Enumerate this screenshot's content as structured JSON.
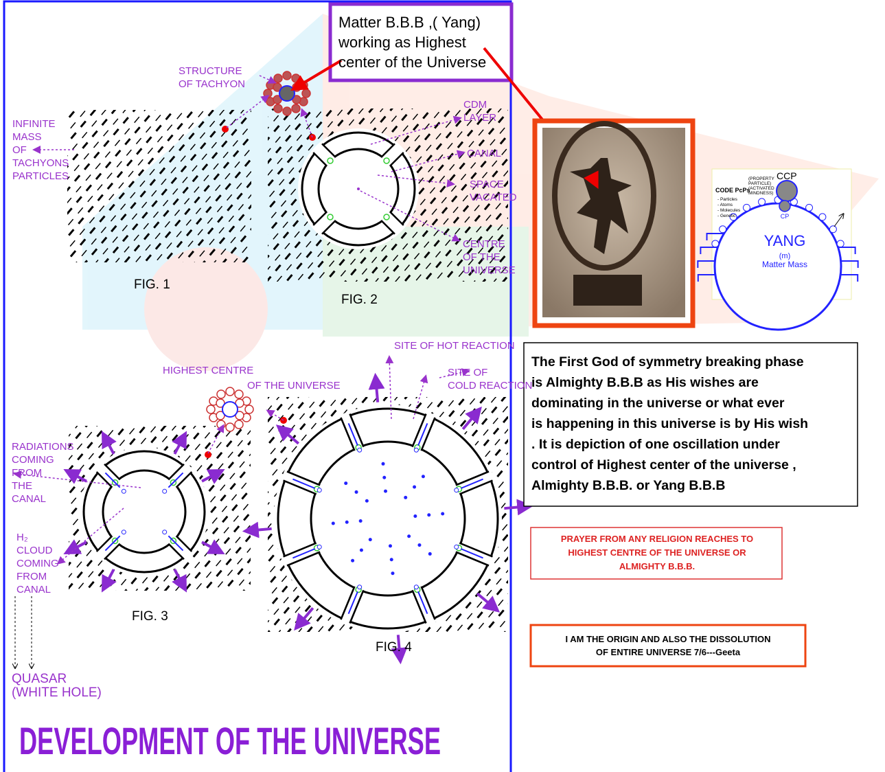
{
  "header_box": {
    "lines": [
      "Matter B.B.B ,( Yang)",
      "working as Highest",
      "center of the Universe"
    ]
  },
  "fig1": {
    "structure_label": [
      "STRUCTURE",
      "OF TACHYON"
    ],
    "mass_label": [
      "INFINITE",
      "MASS",
      "OF",
      "TACHYONS",
      "PARTICLES"
    ],
    "caption": "FIG. 1"
  },
  "fig2": {
    "cdm_label": [
      "CDM",
      "LAYER"
    ],
    "canal_label": "CANAL",
    "space_label": [
      "SPACE",
      "VACATED"
    ],
    "centre_label": [
      "CENTRE",
      "OF THE",
      "UNIVERSE"
    ],
    "caption": "FIG. 2"
  },
  "fig3": {
    "radiations_label": [
      "RADIATIONS",
      "COMING",
      "FROM",
      "THE",
      "CANAL"
    ],
    "cloud_label": [
      "H₂",
      "CLOUD",
      "COMING",
      "FROM",
      "CANAL"
    ],
    "quasar_label": [
      "QUASAR",
      "(WHITE HOLE)"
    ],
    "caption": "FIG. 3"
  },
  "fig4": {
    "highest_label_1": "HIGHEST CENTRE",
    "highest_label_2": "OF THE UNIVERSE",
    "hot_label": "SITE OF HOT REACTION",
    "cold_label": [
      "SITE OF",
      "COLD REACTION"
    ],
    "caption": "FIG. 4"
  },
  "title": "DEVELOPMENT OF THE UNIVERSE",
  "yang": {
    "ccp": "CCP",
    "property_label": [
      "(PROPERTY",
      "PARTICLE)",
      "(ACTIVATED",
      "MINDNESS)"
    ],
    "code_label": "CODE PcPs",
    "code_items": [
      "- Particles",
      "- Atoms",
      "- Molecules",
      "- Genetic"
    ],
    "cp": "CP",
    "yang": "YANG",
    "m": "(m)",
    "matter": "Matter Mass"
  },
  "statement": {
    "lines": [
      "The First God  of symmetry breaking phase",
      "is Almighty B.B.B  as His wishes are",
      "dominating in the universe  or what ever",
      "is happening in this universe is by His wish",
      " .  It is depiction of one oscillation  under",
      "control of Highest center of the universe  ,",
      "Almighty B.B.B. or Yang B.B.B"
    ]
  },
  "prayer": {
    "lines": [
      "PRAYER FROM ANY RELIGION REACHES TO",
      "HIGHEST CENTRE OF THE UNIVERSE OR",
      "ALMIGHTY B.B.B."
    ]
  },
  "geeta": {
    "lines": [
      "I AM THE ORIGIN AND ALSO THE DISSOLUTION",
      "OF ENTIRE UNIVERSE 7/6---Geeta"
    ]
  }
}
